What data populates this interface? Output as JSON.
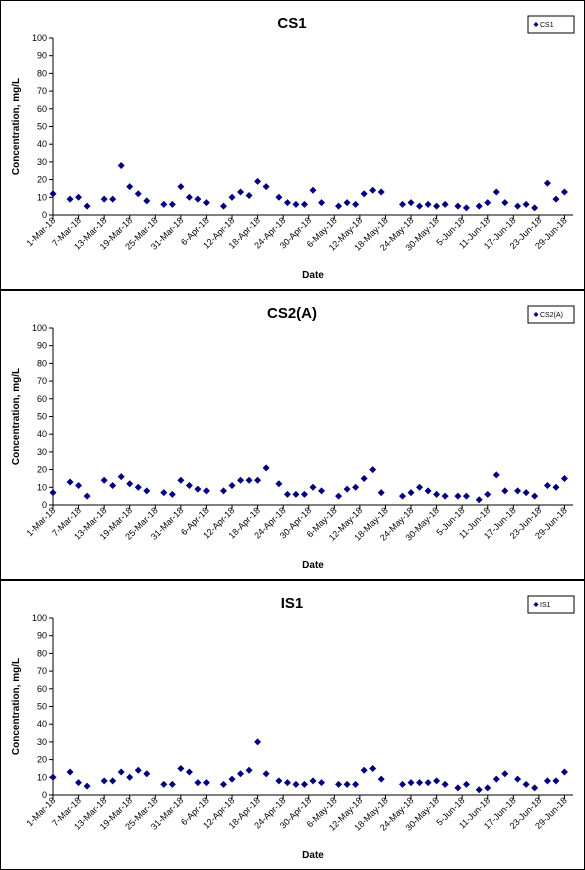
{
  "colors": {
    "marker": "#000080",
    "axis": "#000000",
    "background": "#ffffff"
  },
  "x_ticks": [
    "1-Mar-18",
    "7-Mar-18",
    "13-Mar-18",
    "19-Mar-18",
    "25-Mar-18",
    "31-Mar-18",
    "6-Apr-18",
    "12-Apr-18",
    "18-Apr-18",
    "24-Apr-18",
    "30-Apr-18",
    "6-May-18",
    "12-May-18",
    "18-May-18",
    "24-May-18",
    "30-May-18",
    "5-Jun-18",
    "11-Jun-18",
    "17-Jun-18",
    "23-Jun-18",
    "29-Jun-18"
  ],
  "chart_data": [
    {
      "type": "scatter",
      "title": "CS1",
      "xlabel": "Date",
      "ylabel": "Concentration, mg/L",
      "ylim": [
        0,
        100
      ],
      "yticks": [
        0,
        10,
        20,
        30,
        40,
        50,
        60,
        70,
        80,
        90,
        100
      ],
      "xlim": [
        "1-Mar-18",
        "1-Jul-18"
      ],
      "grid": false,
      "legend": "top-right",
      "series": [
        {
          "name": "CS1",
          "marker": "diamond",
          "x": [
            "1-Mar-18",
            "5-Mar-18",
            "7-Mar-18",
            "9-Mar-18",
            "13-Mar-18",
            "15-Mar-18",
            "17-Mar-18",
            "19-Mar-18",
            "21-Mar-18",
            "23-Mar-18",
            "27-Mar-18",
            "29-Mar-18",
            "31-Mar-18",
            "2-Apr-18",
            "4-Apr-18",
            "6-Apr-18",
            "10-Apr-18",
            "12-Apr-18",
            "14-Apr-18",
            "16-Apr-18",
            "18-Apr-18",
            "20-Apr-18",
            "23-Apr-18",
            "25-Apr-18",
            "27-Apr-18",
            "29-Apr-18",
            "1-May-18",
            "3-May-18",
            "7-May-18",
            "9-May-18",
            "11-May-18",
            "13-May-18",
            "15-May-18",
            "17-May-18",
            "22-May-18",
            "24-May-18",
            "26-May-18",
            "28-May-18",
            "30-May-18",
            "1-Jun-18",
            "4-Jun-18",
            "6-Jun-18",
            "9-Jun-18",
            "11-Jun-18",
            "13-Jun-18",
            "15-Jun-18",
            "18-Jun-18",
            "20-Jun-18",
            "22-Jun-18",
            "25-Jun-18",
            "27-Jun-18",
            "29-Jun-18"
          ],
          "y": [
            12,
            9,
            10,
            5,
            9,
            9,
            28,
            16,
            12,
            8,
            6,
            6,
            16,
            10,
            9,
            7,
            5,
            10,
            13,
            11,
            19,
            16,
            10,
            7,
            6,
            6,
            14,
            7,
            5,
            7,
            6,
            12,
            14,
            13,
            6,
            7,
            5,
            6,
            5,
            6,
            5,
            4,
            5,
            7,
            13,
            7,
            5,
            6,
            4,
            18,
            9,
            13
          ]
        }
      ]
    },
    {
      "type": "scatter",
      "title": "CS2(A)",
      "xlabel": "Date",
      "ylabel": "Concentration, mg/L",
      "ylim": [
        0,
        100
      ],
      "yticks": [
        0,
        10,
        20,
        30,
        40,
        50,
        60,
        70,
        80,
        90,
        100
      ],
      "xlim": [
        "1-Mar-18",
        "1-Jul-18"
      ],
      "grid": false,
      "legend": "top-right",
      "series": [
        {
          "name": "CS2(A)",
          "marker": "diamond",
          "x": [
            "1-Mar-18",
            "5-Mar-18",
            "7-Mar-18",
            "9-Mar-18",
            "13-Mar-18",
            "15-Mar-18",
            "17-Mar-18",
            "19-Mar-18",
            "21-Mar-18",
            "23-Mar-18",
            "27-Mar-18",
            "29-Mar-18",
            "31-Mar-18",
            "2-Apr-18",
            "4-Apr-18",
            "6-Apr-18",
            "10-Apr-18",
            "12-Apr-18",
            "14-Apr-18",
            "16-Apr-18",
            "18-Apr-18",
            "20-Apr-18",
            "23-Apr-18",
            "25-Apr-18",
            "27-Apr-18",
            "29-Apr-18",
            "1-May-18",
            "3-May-18",
            "7-May-18",
            "9-May-18",
            "11-May-18",
            "13-May-18",
            "15-May-18",
            "17-May-18",
            "22-May-18",
            "24-May-18",
            "26-May-18",
            "28-May-18",
            "30-May-18",
            "1-Jun-18",
            "4-Jun-18",
            "6-Jun-18",
            "9-Jun-18",
            "11-Jun-18",
            "13-Jun-18",
            "15-Jun-18",
            "18-Jun-18",
            "20-Jun-18",
            "22-Jun-18",
            "25-Jun-18",
            "27-Jun-18",
            "29-Jun-18"
          ],
          "y": [
            7,
            13,
            11,
            5,
            14,
            11,
            16,
            12,
            10,
            8,
            7,
            6,
            14,
            11,
            9,
            8,
            8,
            11,
            14,
            14,
            14,
            21,
            12,
            6,
            6,
            6,
            10,
            8,
            5,
            9,
            10,
            15,
            20,
            7,
            5,
            7,
            10,
            8,
            6,
            5,
            5,
            5,
            3,
            6,
            17,
            8,
            8,
            7,
            5,
            11,
            10,
            15
          ]
        }
      ]
    },
    {
      "type": "scatter",
      "title": "IS1",
      "xlabel": "Date",
      "ylabel": "Concentration, mg/L",
      "ylim": [
        0,
        100
      ],
      "yticks": [
        0,
        10,
        20,
        30,
        40,
        50,
        60,
        70,
        80,
        90,
        100
      ],
      "xlim": [
        "1-Mar-18",
        "1-Jul-18"
      ],
      "grid": false,
      "legend": "top-right",
      "series": [
        {
          "name": "IS1",
          "marker": "diamond",
          "x": [
            "1-Mar-18",
            "5-Mar-18",
            "7-Mar-18",
            "9-Mar-18",
            "13-Mar-18",
            "15-Mar-18",
            "17-Mar-18",
            "19-Mar-18",
            "21-Mar-18",
            "23-Mar-18",
            "27-Mar-18",
            "29-Mar-18",
            "31-Mar-18",
            "2-Apr-18",
            "4-Apr-18",
            "6-Apr-18",
            "10-Apr-18",
            "12-Apr-18",
            "14-Apr-18",
            "16-Apr-18",
            "18-Apr-18",
            "20-Apr-18",
            "23-Apr-18",
            "25-Apr-18",
            "27-Apr-18",
            "29-Apr-18",
            "1-May-18",
            "3-May-18",
            "7-May-18",
            "9-May-18",
            "11-May-18",
            "13-May-18",
            "15-May-18",
            "17-May-18",
            "22-May-18",
            "24-May-18",
            "26-May-18",
            "28-May-18",
            "30-May-18",
            "1-Jun-18",
            "4-Jun-18",
            "6-Jun-18",
            "9-Jun-18",
            "11-Jun-18",
            "13-Jun-18",
            "15-Jun-18",
            "18-Jun-18",
            "20-Jun-18",
            "22-Jun-18",
            "25-Jun-18",
            "27-Jun-18",
            "29-Jun-18"
          ],
          "y": [
            10,
            13,
            7,
            5,
            8,
            8,
            13,
            10,
            14,
            12,
            6,
            6,
            15,
            13,
            7,
            7,
            6,
            9,
            12,
            14,
            30,
            12,
            8,
            7,
            6,
            6,
            8,
            7,
            6,
            6,
            6,
            14,
            15,
            9,
            6,
            7,
            7,
            7,
            8,
            6,
            4,
            6,
            3,
            4,
            9,
            12,
            9,
            6,
            4,
            8,
            8,
            13
          ]
        }
      ]
    }
  ]
}
